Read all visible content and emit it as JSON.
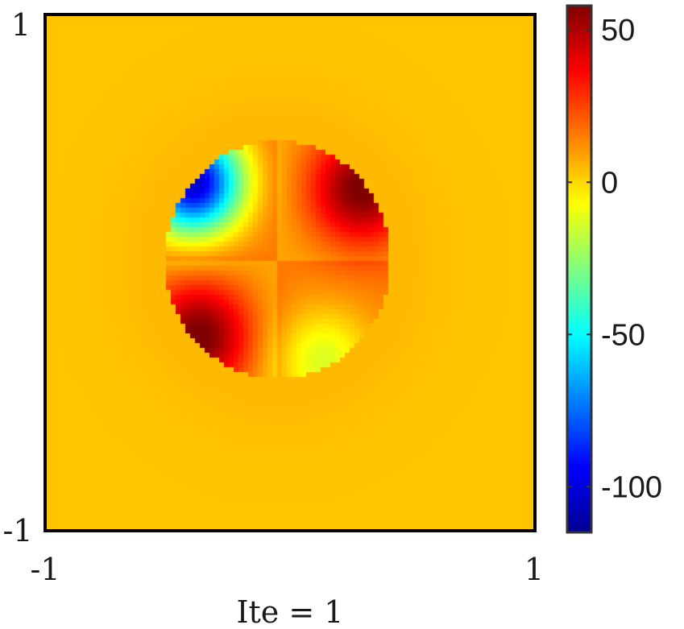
{
  "chart_data": {
    "type": "heatmap",
    "title": "",
    "xlabel": "Ite = 1",
    "ylabel": "",
    "xlim": [
      -1,
      1
    ],
    "ylim": [
      -1,
      1
    ],
    "x_ticks": [
      "-1",
      "1"
    ],
    "y_ticks": [
      "1",
      "-1"
    ],
    "grid": false,
    "colormap": "jet",
    "colorbar": {
      "range": [
        -115,
        58
      ],
      "ticks": [
        {
          "value": 50,
          "label": "50"
        },
        {
          "value": 0,
          "label": "0"
        },
        {
          "value": -50,
          "label": "-50"
        },
        {
          "value": -100,
          "label": "-100"
        }
      ]
    },
    "background_value": 3,
    "field": {
      "shape": "disk",
      "center": [
        -0.05,
        0.05
      ],
      "radius": 0.46,
      "features": [
        {
          "name": "upper-left lobe",
          "min_value": -112
        },
        {
          "name": "upper-right lobe",
          "max_value": 55
        },
        {
          "name": "lower-left lobe",
          "max_value": 55
        },
        {
          "name": "lower-right lobe",
          "min_value": -25
        }
      ]
    }
  }
}
